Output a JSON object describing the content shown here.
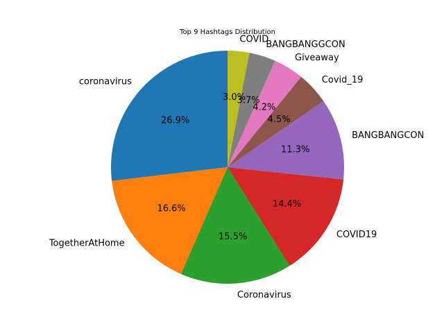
{
  "chart_data": {
    "type": "pie",
    "title": "Top 9 Hashtags Distribution",
    "start_angle_deg": 90,
    "direction": "counterclockwise",
    "slices": [
      {
        "label": "coronavirus",
        "value": 26.9,
        "pct_label": "26.9%",
        "color": "#1f77b4"
      },
      {
        "label": "TogetherAtHome",
        "value": 16.6,
        "pct_label": "16.6%",
        "color": "#ff7f0e"
      },
      {
        "label": "Coronavirus",
        "value": 15.5,
        "pct_label": "15.5%",
        "color": "#2ca02c"
      },
      {
        "label": "COVID19",
        "value": 14.4,
        "pct_label": "14.4%",
        "color": "#d62728"
      },
      {
        "label": "BANGBANGCON",
        "value": 11.3,
        "pct_label": "11.3%",
        "color": "#9467bd"
      },
      {
        "label": "Covid_19",
        "value": 4.5,
        "pct_label": "4.5%",
        "color": "#8c564b"
      },
      {
        "label": "Giveaway",
        "value": 4.2,
        "pct_label": "4.2%",
        "color": "#e377c2"
      },
      {
        "label": "BANGBANGGCON",
        "value": 3.7,
        "pct_label": "3.7%",
        "color": "#7f7f7f"
      },
      {
        "label": "COVID",
        "value": 3.0,
        "pct_label": "3.0%",
        "color": "#bcbd22"
      }
    ]
  }
}
